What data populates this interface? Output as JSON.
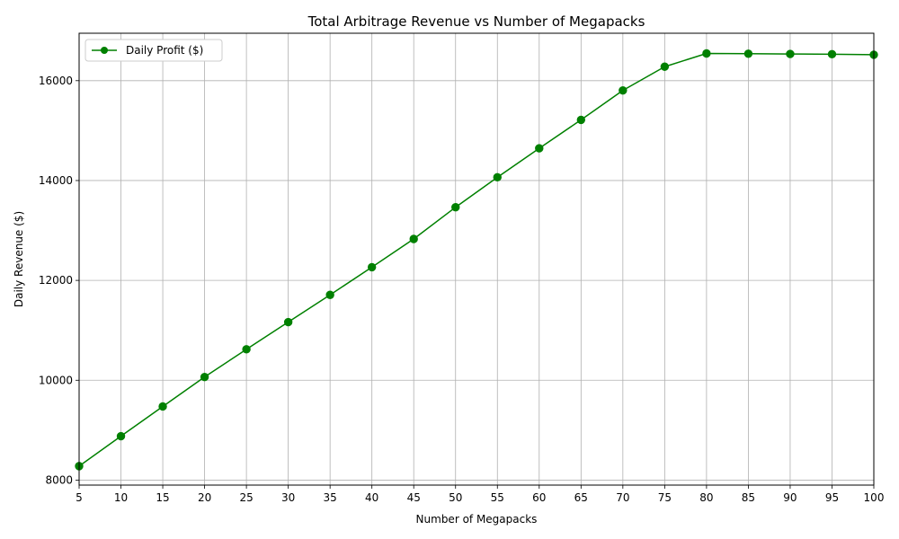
{
  "chart_data": {
    "type": "line",
    "title": "Total Arbitrage Revenue vs Number of Megapacks",
    "xlabel": "Number of Megapacks",
    "ylabel": "Daily Revenue ($)",
    "x": [
      5,
      10,
      15,
      20,
      25,
      30,
      35,
      40,
      45,
      50,
      55,
      60,
      65,
      70,
      75,
      80,
      85,
      90,
      95,
      100
    ],
    "series": [
      {
        "name": "Daily Profit ($)",
        "color": "#008000",
        "marker": "circle",
        "values": [
          8280,
          8880,
          9475,
          10065,
          10620,
          11165,
          11710,
          12265,
          12830,
          13465,
          14065,
          14645,
          15215,
          15805,
          16280,
          16545,
          16540,
          16535,
          16530,
          16520
        ]
      }
    ],
    "xticks": [
      5,
      10,
      15,
      20,
      25,
      30,
      35,
      40,
      45,
      50,
      55,
      60,
      65,
      70,
      75,
      80,
      85,
      90,
      95,
      100
    ],
    "yticks": [
      8000,
      10000,
      12000,
      14000,
      16000
    ],
    "xlim": [
      5,
      100
    ],
    "ylim": [
      7900,
      16950
    ],
    "grid": true,
    "legend_position": "top-left"
  }
}
